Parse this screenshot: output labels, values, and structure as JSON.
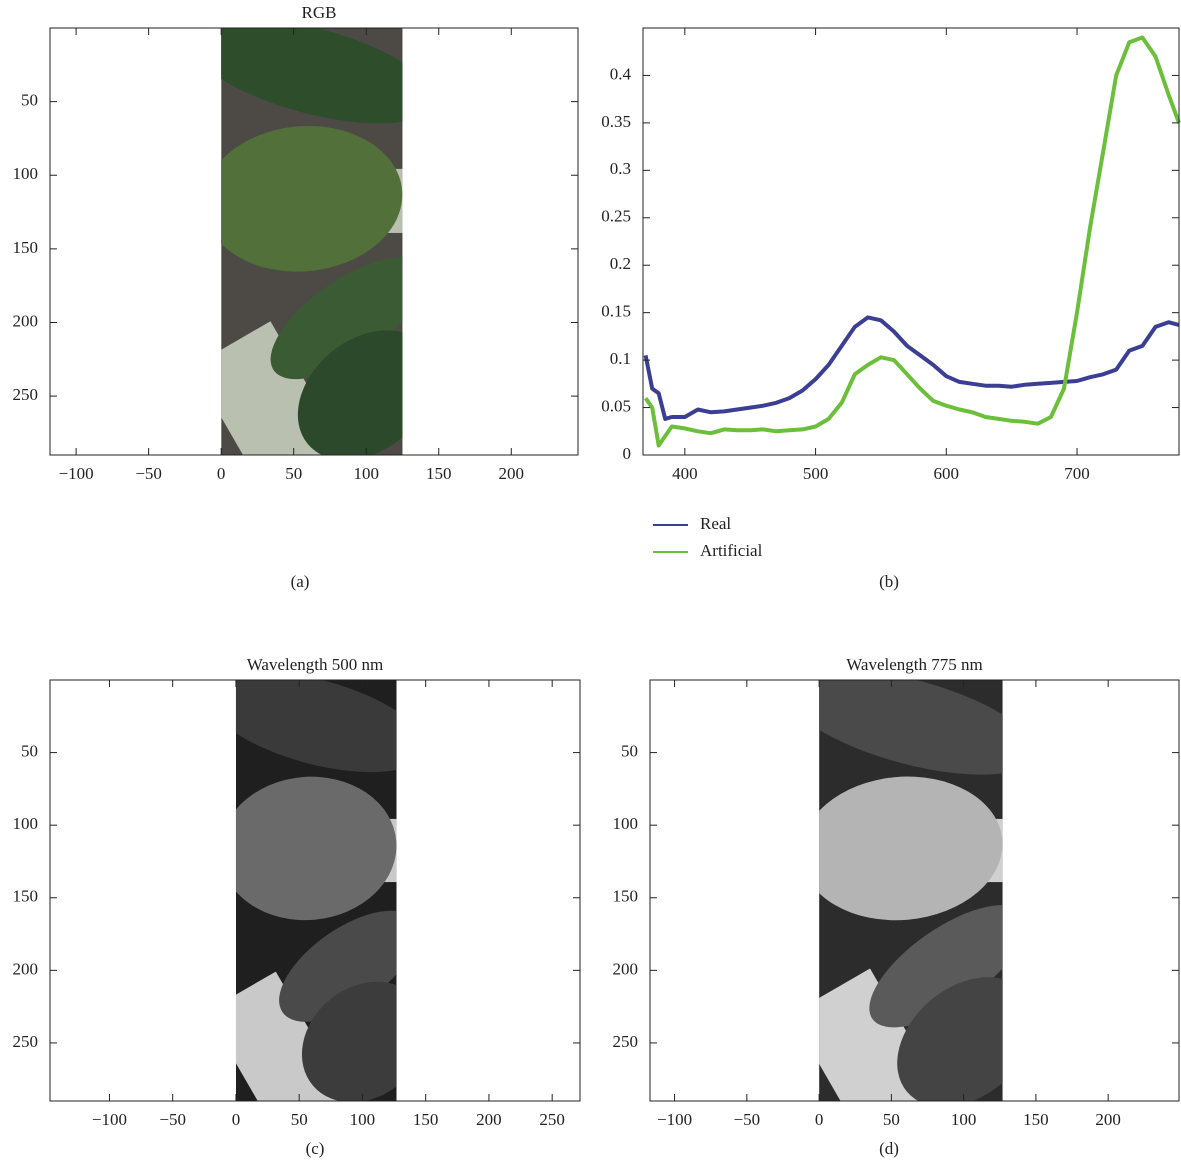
{
  "chart_data": [
    {
      "type": "image",
      "title": "RGB",
      "caption": "(a)",
      "extent": [
        0,
        125,
        290,
        0
      ],
      "xlim": [
        -118,
        246
      ],
      "ylim": [
        290,
        0
      ],
      "xticks": [
        {
          "value": -100,
          "label": "−100"
        },
        {
          "value": -50,
          "label": "−50"
        },
        0,
        50,
        100,
        150,
        200
      ],
      "yticks": [
        50,
        100,
        150,
        200,
        250
      ]
    },
    {
      "type": "line",
      "caption": "(b)",
      "x": [
        370,
        375,
        380,
        385,
        390,
        400,
        410,
        420,
        430,
        440,
        450,
        460,
        470,
        480,
        490,
        500,
        510,
        520,
        530,
        540,
        550,
        560,
        570,
        580,
        590,
        600,
        610,
        620,
        630,
        640,
        650,
        660,
        670,
        680,
        690,
        700,
        710,
        720,
        730,
        740,
        750,
        760,
        770,
        778
      ],
      "series": [
        {
          "name": "Real",
          "color": "#3a3f94",
          "values": [
            0.105,
            0.07,
            0.065,
            0.038,
            0.04,
            0.04,
            0.048,
            0.045,
            0.046,
            0.048,
            0.05,
            0.052,
            0.055,
            0.06,
            0.068,
            0.08,
            0.095,
            0.115,
            0.135,
            0.145,
            0.142,
            0.13,
            0.115,
            0.105,
            0.095,
            0.083,
            0.077,
            0.075,
            0.073,
            0.073,
            0.072,
            0.074,
            0.075,
            0.076,
            0.077,
            0.078,
            0.082,
            0.085,
            0.09,
            0.11,
            0.115,
            0.135,
            0.14,
            0.137
          ]
        },
        {
          "name": "Artificial",
          "color": "#6cbf3a",
          "values": [
            0.06,
            0.05,
            0.01,
            0.02,
            0.03,
            0.028,
            0.025,
            0.023,
            0.027,
            0.026,
            0.026,
            0.027,
            0.025,
            0.026,
            0.027,
            0.03,
            0.038,
            0.055,
            0.085,
            0.095,
            0.103,
            0.1,
            0.085,
            0.07,
            0.057,
            0.052,
            0.048,
            0.045,
            0.04,
            0.038,
            0.036,
            0.035,
            0.033,
            0.04,
            0.07,
            0.15,
            0.24,
            0.32,
            0.4,
            0.435,
            0.44,
            0.42,
            0.38,
            0.35
          ]
        }
      ],
      "xlim": [
        368,
        778
      ],
      "ylim": [
        0,
        0.45
      ],
      "xticks": [
        400,
        500,
        600,
        700
      ],
      "yticks": [
        0,
        0.05,
        0.1,
        0.15,
        0.2,
        0.25,
        0.3,
        0.35,
        0.4
      ]
    },
    {
      "type": "image",
      "title": "Wavelength 500 nm",
      "caption": "(c)",
      "extent": [
        0,
        127,
        290,
        0
      ],
      "xlim": [
        -147,
        272
      ],
      "ylim": [
        290,
        0
      ],
      "xticks": [
        {
          "value": -100,
          "label": "−100"
        },
        {
          "value": -50,
          "label": "−50"
        },
        0,
        50,
        100,
        150,
        200,
        250
      ],
      "yticks": [
        50,
        100,
        150,
        200,
        250
      ]
    },
    {
      "type": "image",
      "title": "Wavelength 775 nm",
      "caption": "(d)",
      "extent": [
        0,
        127,
        290,
        0
      ],
      "xlim": [
        -117,
        249
      ],
      "ylim": [
        290,
        0
      ],
      "xticks": [
        {
          "value": -100,
          "label": "−100"
        },
        {
          "value": -50,
          "label": "−50"
        },
        0,
        50,
        100,
        150,
        200
      ],
      "yticks": [
        50,
        100,
        150,
        200,
        250
      ]
    }
  ]
}
